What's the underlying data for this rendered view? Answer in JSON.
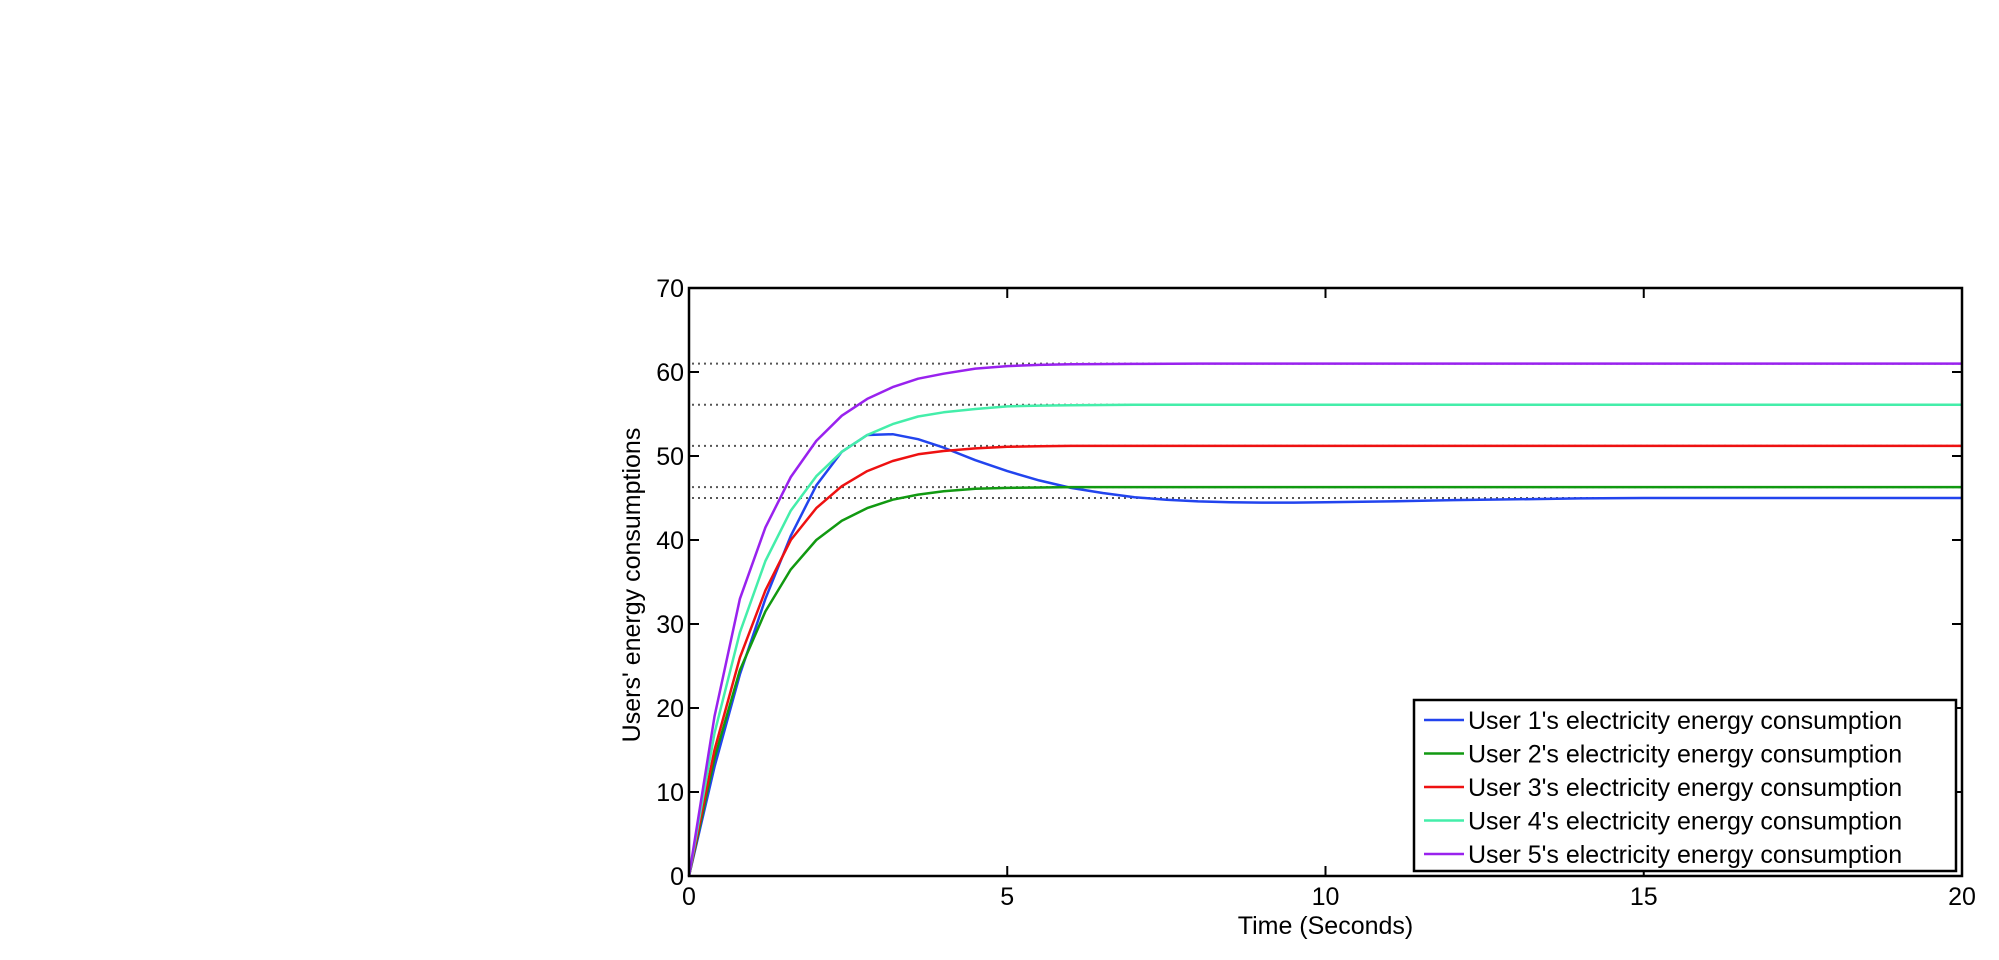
{
  "chart_data": {
    "type": "line",
    "title": "",
    "xlabel": "Time (Seconds)",
    "ylabel": "Users' energy consumptions",
    "xlim": [
      0,
      20
    ],
    "ylim": [
      0,
      70
    ],
    "xticks": [
      "0",
      "5",
      "10",
      "15",
      "20"
    ],
    "yticks": [
      "0",
      "10",
      "20",
      "30",
      "40",
      "50",
      "60",
      "70"
    ],
    "grid": false,
    "legend_position": "bottom-right",
    "reference_lines": [
      61,
      56.1,
      51.2,
      46.3,
      45
    ],
    "series": [
      {
        "name": "User 1's electricity energy consumption",
        "color": "#2244ee",
        "x": [
          0,
          0.4,
          0.8,
          1.2,
          1.6,
          2.0,
          2.4,
          2.8,
          3.2,
          3.6,
          4.0,
          4.5,
          5.0,
          5.5,
          6.0,
          6.5,
          7.0,
          7.5,
          8.0,
          8.5,
          9.0,
          9.5,
          10,
          11,
          12,
          13,
          14,
          15,
          16,
          17,
          18,
          19,
          20
        ],
        "y": [
          0,
          13,
          24,
          33,
          40.5,
          46.5,
          50.5,
          52.5,
          52.6,
          52,
          51,
          49.5,
          48.2,
          47.1,
          46.2,
          45.6,
          45.1,
          44.8,
          44.6,
          44.5,
          44.45,
          44.45,
          44.5,
          44.6,
          44.75,
          44.85,
          44.95,
          45,
          45,
          45,
          45,
          45,
          45
        ]
      },
      {
        "name": "User 2's electricity energy consumption",
        "color": "#119911",
        "x": [
          0,
          0.4,
          0.8,
          1.2,
          1.6,
          2.0,
          2.4,
          2.8,
          3.2,
          3.6,
          4.0,
          4.5,
          5.0,
          5.5,
          6.0,
          7.0,
          8.0,
          10,
          12,
          15,
          20
        ],
        "y": [
          0,
          14,
          24.5,
          31.5,
          36.5,
          40,
          42.3,
          43.8,
          44.8,
          45.4,
          45.8,
          46.1,
          46.2,
          46.25,
          46.3,
          46.3,
          46.3,
          46.3,
          46.3,
          46.3,
          46.3
        ]
      },
      {
        "name": "User 3's electricity energy consumption",
        "color": "#ee1111",
        "x": [
          0,
          0.4,
          0.8,
          1.2,
          1.6,
          2.0,
          2.4,
          2.8,
          3.2,
          3.6,
          4.0,
          4.5,
          5.0,
          5.5,
          6.0,
          7.0,
          8.0,
          10,
          12,
          15,
          20
        ],
        "y": [
          0,
          15,
          26,
          34,
          40,
          43.8,
          46.4,
          48.2,
          49.4,
          50.2,
          50.6,
          50.9,
          51.1,
          51.15,
          51.2,
          51.2,
          51.2,
          51.2,
          51.2,
          51.2,
          51.2
        ]
      },
      {
        "name": "User 4's electricity energy consumption",
        "color": "#44eeaa",
        "x": [
          0,
          0.4,
          0.8,
          1.2,
          1.6,
          2.0,
          2.4,
          2.8,
          3.2,
          3.6,
          4.0,
          4.5,
          5.0,
          5.5,
          6.0,
          7.0,
          8.0,
          10,
          12,
          15,
          20
        ],
        "y": [
          0,
          17,
          29,
          37.5,
          43.5,
          47.6,
          50.5,
          52.5,
          53.8,
          54.7,
          55.2,
          55.6,
          55.9,
          56,
          56.05,
          56.1,
          56.1,
          56.1,
          56.1,
          56.1,
          56.1
        ]
      },
      {
        "name": "User 5's electricity energy consumption",
        "color": "#9922ee",
        "x": [
          0,
          0.4,
          0.8,
          1.2,
          1.6,
          2.0,
          2.4,
          2.8,
          3.2,
          3.6,
          4.0,
          4.5,
          5.0,
          5.5,
          6.0,
          7.0,
          8.0,
          10,
          12,
          15,
          20
        ],
        "y": [
          0,
          19,
          33,
          41.5,
          47.5,
          51.8,
          54.8,
          56.8,
          58.2,
          59.2,
          59.8,
          60.4,
          60.7,
          60.85,
          60.92,
          60.97,
          61,
          61,
          61,
          61,
          61
        ]
      }
    ]
  }
}
